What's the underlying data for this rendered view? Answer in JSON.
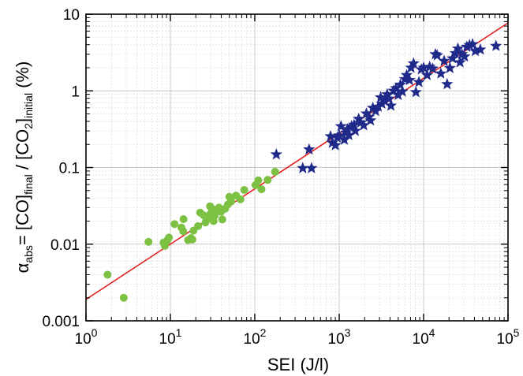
{
  "chart_data": {
    "type": "scatter",
    "title": "",
    "x_scale": "log",
    "y_scale": "log",
    "xlim": [
      1,
      100000
    ],
    "ylim": [
      0.001,
      10
    ],
    "grid": true,
    "legend": "none",
    "xlabel": {
      "main": "SEI (J/l)"
    },
    "ylabel": {
      "alpha": "α",
      "alpha_sub": "abs",
      "eq": "= [CO]",
      "final_sub": "final",
      "mid": " / [CO",
      "two_sub": "2",
      "close": "]",
      "initial_sub": "initial",
      "unit": " (%)"
    },
    "x_ticks": [
      {
        "value": 1,
        "base": "10",
        "exp": "0"
      },
      {
        "value": 10,
        "base": "10",
        "exp": "1"
      },
      {
        "value": 100,
        "base": "10",
        "exp": "2"
      },
      {
        "value": 1000,
        "base": "10",
        "exp": "3"
      },
      {
        "value": 10000,
        "base": "10",
        "exp": "4"
      },
      {
        "value": 100000,
        "base": "10",
        "exp": "5"
      }
    ],
    "y_ticks": [
      {
        "value": 0.001,
        "label": "0.001"
      },
      {
        "value": 0.01,
        "label": "0.01"
      },
      {
        "value": 0.1,
        "label": "0.1"
      },
      {
        "value": 1,
        "label": "1"
      },
      {
        "value": 10,
        "label": "10"
      }
    ],
    "series": [
      {
        "marker": "circle",
        "color": "#7dc142",
        "points": [
          [
            1.8,
            0.004
          ],
          [
            2.8,
            0.002
          ],
          [
            5.5,
            0.0107
          ],
          [
            8.3,
            0.0105
          ],
          [
            8.6,
            0.0095
          ],
          [
            9.6,
            0.0122
          ],
          [
            9.2,
            0.0112
          ],
          [
            11.2,
            0.0183
          ],
          [
            13.5,
            0.0165
          ],
          [
            14.2,
            0.0147
          ],
          [
            14.3,
            0.0212
          ],
          [
            16.2,
            0.0113
          ],
          [
            17.5,
            0.012
          ],
          [
            18.2,
            0.0115
          ],
          [
            18.8,
            0.015
          ],
          [
            21.3,
            0.0172
          ],
          [
            22.5,
            0.0258
          ],
          [
            24.8,
            0.0238
          ],
          [
            26.0,
            0.0192
          ],
          [
            27.0,
            0.021
          ],
          [
            28.3,
            0.023
          ],
          [
            29.5,
            0.0312
          ],
          [
            30.0,
            0.025
          ],
          [
            31.2,
            0.029
          ],
          [
            32.5,
            0.02
          ],
          [
            33.5,
            0.0235
          ],
          [
            35.5,
            0.027
          ],
          [
            37.6,
            0.03
          ],
          [
            39.8,
            0.0265
          ],
          [
            41.2,
            0.021
          ],
          [
            44.6,
            0.029
          ],
          [
            48.0,
            0.033
          ],
          [
            50.0,
            0.0415
          ],
          [
            52.5,
            0.036
          ],
          [
            60.0,
            0.043
          ],
          [
            67.6,
            0.0385
          ],
          [
            75.0,
            0.051
          ],
          [
            102.0,
            0.059
          ],
          [
            110.0,
            0.068
          ],
          [
            120.0,
            0.052
          ],
          [
            142.0,
            0.069
          ],
          [
            174.0,
            0.088
          ]
        ]
      },
      {
        "marker": "star",
        "color": "#1f2a8a",
        "points": [
          [
            180,
            0.148
          ],
          [
            370,
            0.098
          ],
          [
            440,
            0.172
          ],
          [
            470,
            0.098
          ],
          [
            790,
            0.255
          ],
          [
            830,
            0.21
          ],
          [
            900,
            0.195
          ],
          [
            950,
            0.245
          ],
          [
            1000,
            0.262
          ],
          [
            1050,
            0.345
          ],
          [
            1150,
            0.23
          ],
          [
            1200,
            0.285
          ],
          [
            1250,
            0.315
          ],
          [
            1300,
            0.265
          ],
          [
            1400,
            0.345
          ],
          [
            1500,
            0.36
          ],
          [
            1550,
            0.3
          ],
          [
            1700,
            0.43
          ],
          [
            1800,
            0.385
          ],
          [
            1950,
            0.355
          ],
          [
            2100,
            0.505
          ],
          [
            2250,
            0.455
          ],
          [
            2350,
            0.41
          ],
          [
            2500,
            0.6
          ],
          [
            2700,
            0.545
          ],
          [
            2900,
            0.62
          ],
          [
            3100,
            0.82
          ],
          [
            3200,
            0.68
          ],
          [
            3450,
            0.74
          ],
          [
            3700,
            0.9
          ],
          [
            3900,
            0.79
          ],
          [
            4100,
            0.64
          ],
          [
            4400,
            1.0
          ],
          [
            4700,
            1.08
          ],
          [
            5000,
            0.88
          ],
          [
            5300,
            1.2
          ],
          [
            5600,
            0.98
          ],
          [
            6000,
            1.42
          ],
          [
            6300,
            1.6
          ],
          [
            6800,
            1.38
          ],
          [
            7100,
            2.0
          ],
          [
            7600,
            2.28
          ],
          [
            8100,
            0.96
          ],
          [
            8800,
            1.3
          ],
          [
            9400,
            1.9
          ],
          [
            10000,
            2.0
          ],
          [
            11000,
            1.6
          ],
          [
            11800,
            2.05
          ],
          [
            12800,
            1.95
          ],
          [
            13800,
            3.0
          ],
          [
            14500,
            2.9
          ],
          [
            16000,
            1.68
          ],
          [
            17500,
            2.45
          ],
          [
            19000,
            1.22
          ],
          [
            20500,
            1.98
          ],
          [
            22000,
            2.65
          ],
          [
            23800,
            3.1
          ],
          [
            25500,
            3.55
          ],
          [
            27000,
            2.35
          ],
          [
            28500,
            3.0
          ],
          [
            30500,
            2.8
          ],
          [
            32500,
            3.75
          ],
          [
            35000,
            3.95
          ],
          [
            38000,
            4.05
          ],
          [
            41000,
            3.3
          ],
          [
            47000,
            3.45
          ],
          [
            72000,
            3.85
          ]
        ]
      }
    ],
    "fit_line": {
      "color": "#e3221e",
      "x": [
        1,
        100000
      ],
      "y": [
        0.0019,
        7.7
      ]
    }
  }
}
